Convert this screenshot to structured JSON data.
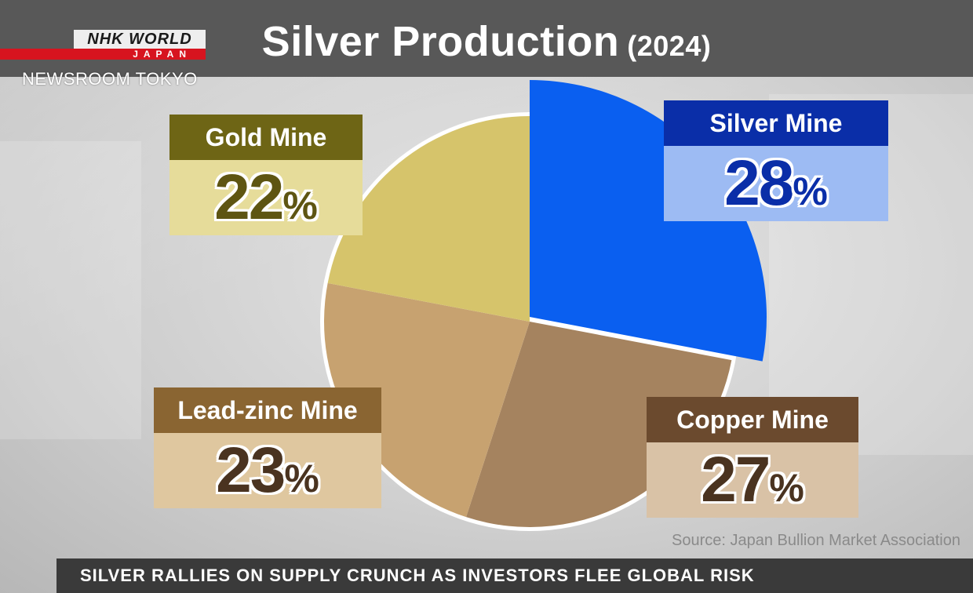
{
  "broadcaster": {
    "logo_line1": "NHK WORLD",
    "logo_line2": "JAPAN",
    "program": "NEWSROOM TOKYO"
  },
  "title": "Silver Production",
  "title_year": "(2024)",
  "source": "Source: Japan Bullion Market Association",
  "ticker": "SILVER RALLIES ON SUPPLY CRUNCH AS INVESTORS FLEE GLOBAL RISK",
  "chart_data": {
    "type": "pie",
    "title": "Silver Production (2024)",
    "unit": "%",
    "slices": [
      {
        "label": "Silver Mine",
        "value": 28,
        "color": "#0a5ff0",
        "exploded": true,
        "head_color": "#0a2ea8",
        "box_color": "#9dbbf3",
        "value_color": "#0a2ea8"
      },
      {
        "label": "Copper Mine",
        "value": 27,
        "color": "#a5835f",
        "exploded": false,
        "head_color": "#6b4a2e",
        "box_color": "#d9c2a6",
        "value_color": "#4a3320"
      },
      {
        "label": "Lead-zinc Mine",
        "value": 23,
        "color": "#c7a270",
        "exploded": false,
        "head_color": "#8a6532",
        "box_color": "#dfc79f",
        "value_color": "#4a3320"
      },
      {
        "label": "Gold Mine",
        "value": 22,
        "color": "#d6c46b",
        "exploded": false,
        "head_color": "#6e6515",
        "box_color": "#e6dc9a",
        "value_color": "#5e5512"
      }
    ]
  }
}
